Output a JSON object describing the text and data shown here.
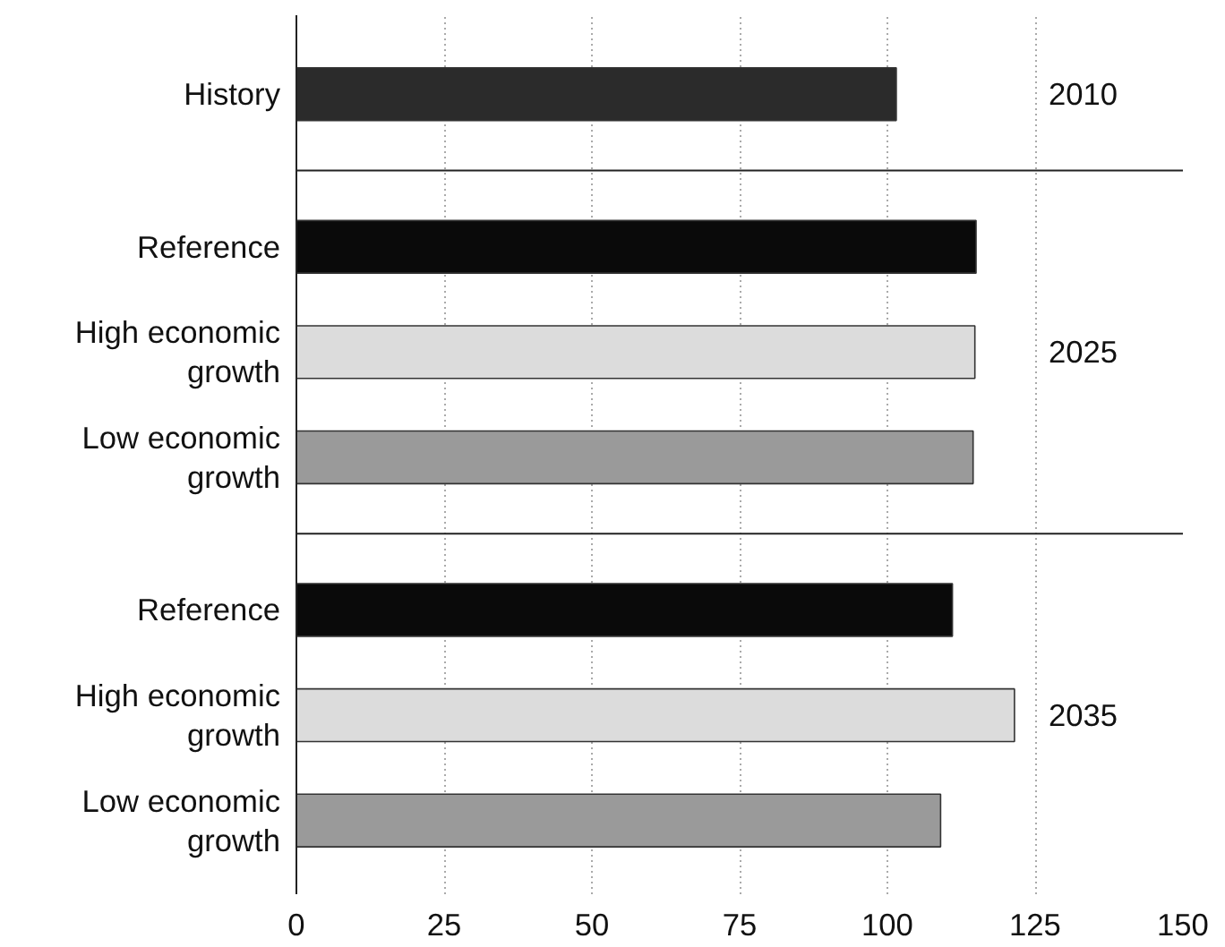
{
  "chart_data": {
    "type": "bar",
    "orientation": "horizontal",
    "categories": [
      "History",
      "Reference",
      "High economic growth",
      "Low economic growth",
      "Reference",
      "High economic growth",
      "Low economic growth"
    ],
    "values": [
      101.5,
      115,
      114.8,
      114.5,
      111,
      121.5,
      109
    ],
    "colors": [
      "#2b2b2b",
      "#0a0a0a",
      "#dcdcdc",
      "#9a9a9a",
      "#0a0a0a",
      "#dcdcdc",
      "#9a9a9a"
    ],
    "xlim": [
      0,
      150
    ],
    "xticks": [
      0,
      25,
      50,
      75,
      100,
      125,
      150
    ],
    "grid": "x",
    "annotations": [
      "2010",
      "2025",
      "2035"
    ]
  }
}
